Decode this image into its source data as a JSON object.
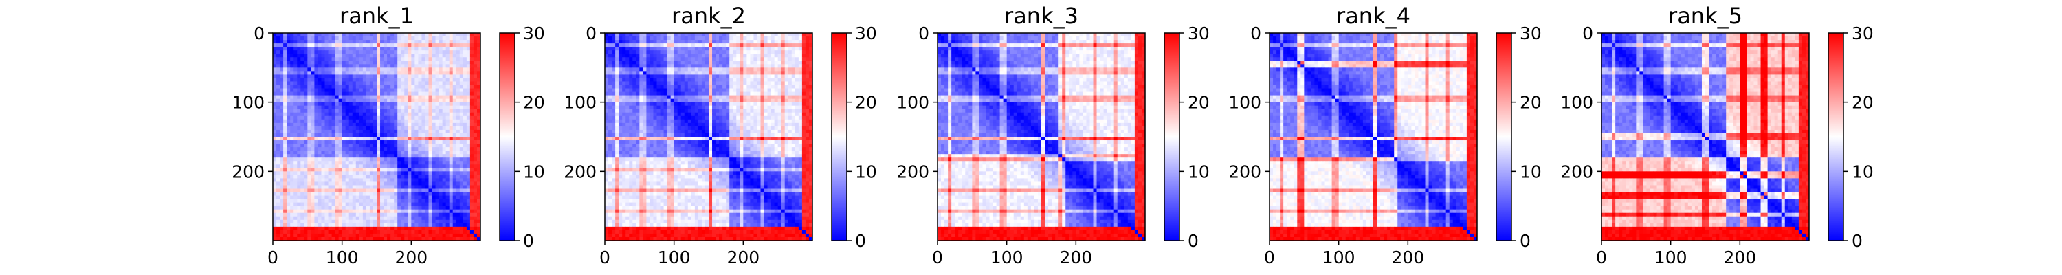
{
  "chart_data": [
    {
      "type": "heatmap",
      "title": "rank_1",
      "matrix_size": 300,
      "x_ticks": [
        0,
        100,
        200
      ],
      "y_ticks": [
        0,
        100,
        200
      ],
      "colorbar": {
        "ticks": [
          0,
          10,
          20,
          30
        ],
        "range": [
          0,
          30
        ],
        "colormap": "bwr"
      },
      "bands": [
        {
          "pos": 18,
          "width": 6,
          "strength": 0.35
        },
        {
          "pos": 55,
          "width": 5,
          "strength": 0.25
        },
        {
          "pos": 95,
          "width": 5,
          "strength": 0.25
        },
        {
          "pos": 152,
          "width": 7,
          "strength": 0.6
        },
        {
          "pos": 198,
          "width": 5,
          "strength": 0.25
        },
        {
          "pos": 228,
          "width": 5,
          "strength": 0.3
        },
        {
          "pos": 258,
          "width": 4,
          "strength": 0.25
        }
      ],
      "offblock_level": 0.55,
      "terminal_level": 0.97
    },
    {
      "type": "heatmap",
      "title": "rank_2",
      "matrix_size": 300,
      "x_ticks": [
        0,
        100,
        200
      ],
      "y_ticks": [
        0,
        100,
        200
      ],
      "colorbar": {
        "ticks": [
          0,
          10,
          20,
          30
        ],
        "range": [
          0,
          30
        ],
        "colormap": "bwr"
      },
      "bands": [
        {
          "pos": 18,
          "width": 6,
          "strength": 0.4
        },
        {
          "pos": 55,
          "width": 5,
          "strength": 0.3
        },
        {
          "pos": 95,
          "width": 5,
          "strength": 0.3
        },
        {
          "pos": 152,
          "width": 7,
          "strength": 0.7
        },
        {
          "pos": 198,
          "width": 5,
          "strength": 0.3
        },
        {
          "pos": 228,
          "width": 5,
          "strength": 0.35
        },
        {
          "pos": 258,
          "width": 4,
          "strength": 0.3
        }
      ],
      "offblock_level": 0.6,
      "terminal_level": 0.97
    },
    {
      "type": "heatmap",
      "title": "rank_3",
      "matrix_size": 300,
      "x_ticks": [
        0,
        100,
        200
      ],
      "y_ticks": [
        0,
        100,
        200
      ],
      "colorbar": {
        "ticks": [
          0,
          10,
          20,
          30
        ],
        "range": [
          0,
          30
        ],
        "colormap": "bwr"
      },
      "bands": [
        {
          "pos": 18,
          "width": 6,
          "strength": 0.45
        },
        {
          "pos": 55,
          "width": 5,
          "strength": 0.3
        },
        {
          "pos": 95,
          "width": 5,
          "strength": 0.35
        },
        {
          "pos": 152,
          "width": 7,
          "strength": 0.75
        },
        {
          "pos": 180,
          "width": 5,
          "strength": 0.45
        },
        {
          "pos": 228,
          "width": 5,
          "strength": 0.4
        },
        {
          "pos": 258,
          "width": 4,
          "strength": 0.35
        }
      ],
      "offblock_level": 0.62,
      "terminal_level": 0.98
    },
    {
      "type": "heatmap",
      "title": "rank_4",
      "matrix_size": 300,
      "x_ticks": [
        0,
        100,
        200
      ],
      "y_ticks": [
        0,
        100,
        200
      ],
      "colorbar": {
        "ticks": [
          0,
          10,
          20,
          30
        ],
        "range": [
          0,
          30
        ],
        "colormap": "bwr"
      },
      "bands": [
        {
          "pos": 18,
          "width": 6,
          "strength": 0.4
        },
        {
          "pos": 45,
          "width": 8,
          "strength": 0.7
        },
        {
          "pos": 95,
          "width": 5,
          "strength": 0.35
        },
        {
          "pos": 152,
          "width": 7,
          "strength": 0.8
        },
        {
          "pos": 182,
          "width": 5,
          "strength": 0.45
        },
        {
          "pos": 228,
          "width": 5,
          "strength": 0.4
        },
        {
          "pos": 258,
          "width": 4,
          "strength": 0.35
        }
      ],
      "offblock_level": 0.66,
      "terminal_level": 0.98
    },
    {
      "type": "heatmap",
      "title": "rank_5",
      "matrix_size": 300,
      "x_ticks": [
        0,
        100,
        200
      ],
      "y_ticks": [
        0,
        100,
        200
      ],
      "colorbar": {
        "ticks": [
          0,
          10,
          20,
          30
        ],
        "range": [
          0,
          30
        ],
        "colormap": "bwr"
      },
      "bands": [
        {
          "pos": 18,
          "width": 6,
          "strength": 0.45
        },
        {
          "pos": 55,
          "width": 5,
          "strength": 0.35
        },
        {
          "pos": 95,
          "width": 5,
          "strength": 0.35
        },
        {
          "pos": 150,
          "width": 6,
          "strength": 0.55
        },
        {
          "pos": 205,
          "width": 8,
          "strength": 0.85
        },
        {
          "pos": 235,
          "width": 6,
          "strength": 0.7
        },
        {
          "pos": 262,
          "width": 5,
          "strength": 0.6
        }
      ],
      "offblock_level": 0.85,
      "terminal_level": 0.99
    }
  ]
}
